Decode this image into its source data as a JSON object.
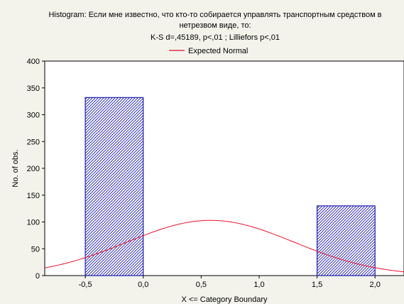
{
  "chart_data": {
    "type": "bar",
    "title_lines": [
      "Histogram: Если мне известно, что кто-то собирается управлять транспортным средством в",
      "нетрезвом виде, то:",
      "K-S d=,45189, p<,01 ; Lilliefors p<,01"
    ],
    "legend": {
      "label": "Expected Normal",
      "placement": "top-center",
      "color": "#e8102a"
    },
    "xlabel": "X <= Category Boundary",
    "ylabel": "No. of obs.",
    "xlim": [
      -0.85,
      2.25
    ],
    "ylim": [
      0,
      400
    ],
    "x_ticks": [
      {
        "v": -0.5,
        "label": "-0,5"
      },
      {
        "v": 0.0,
        "label": "0,0"
      },
      {
        "v": 0.5,
        "label": "0,5"
      },
      {
        "v": 1.0,
        "label": "1,0"
      },
      {
        "v": 1.5,
        "label": "1,5"
      },
      {
        "v": 2.0,
        "label": "2,0"
      }
    ],
    "y_ticks": [
      {
        "v": 0,
        "label": "0"
      },
      {
        "v": 50,
        "label": "50"
      },
      {
        "v": 100,
        "label": "100"
      },
      {
        "v": 150,
        "label": "150"
      },
      {
        "v": 200,
        "label": "200"
      },
      {
        "v": 250,
        "label": "250"
      },
      {
        "v": 300,
        "label": "300"
      },
      {
        "v": 350,
        "label": "350"
      },
      {
        "v": 400,
        "label": "400"
      }
    ],
    "bars": [
      {
        "x0": -0.5,
        "x1": 0.0,
        "value": 332
      },
      {
        "x0": 1.5,
        "x1": 2.0,
        "value": 130
      }
    ],
    "expected_normal": {
      "mean": 0.58,
      "sd": 0.72,
      "peak": 103
    },
    "grid": false,
    "colors": {
      "bar_stroke": "#1c1cb0",
      "hatch": "#1c1cb0",
      "bar_fill": "#ffffff",
      "plot_bg": "#ffffff"
    }
  }
}
